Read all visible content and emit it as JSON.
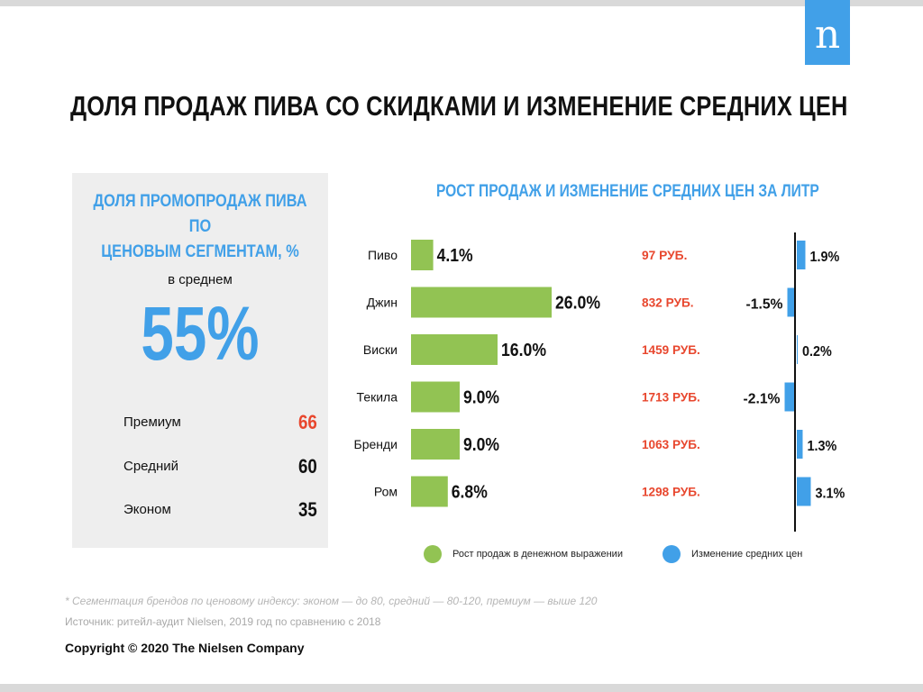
{
  "logo": {
    "text": "n"
  },
  "title": "ДОЛЯ ПРОДАЖ ПИВА СО СКИДКАМИ И ИЗМЕНЕНИЕ СРЕДНИХ ЦЕН",
  "panel": {
    "title_line1": "ДОЛЯ ПРОМОПРОДАЖ ПИВА ПО",
    "title_line2": "ЦЕНОВЫМ СЕГМЕНТАМ, %",
    "avg_label": "в среднем",
    "avg_value": "55%",
    "segments": [
      {
        "name": "Премиум",
        "value": "66"
      },
      {
        "name": "Средний",
        "value": "60"
      },
      {
        "name": "Эконом",
        "value": "35"
      }
    ]
  },
  "chart_data": {
    "type": "bar",
    "title": "РОСТ ПРОДАЖ И ИЗМЕНЕНИЕ СРЕДНИХ ЦЕН ЗА ЛИТР",
    "categories": [
      "Пиво",
      "Джин",
      "Виски",
      "Текила",
      "Бренди",
      "Ром"
    ],
    "series": [
      {
        "name": "Рост продаж в денежном выражении",
        "values": [
          4.1,
          26.0,
          16.0,
          9.0,
          9.0,
          6.8
        ],
        "labels": [
          "4.1%",
          "26.0%",
          "16.0%",
          "9.0%",
          "9.0%",
          "6.8%"
        ],
        "color": "#92c353"
      },
      {
        "name": "Изменение средних цен",
        "values": [
          1.9,
          -1.5,
          0.2,
          -2.1,
          1.3,
          3.1
        ],
        "labels": [
          "1.9%",
          "-1.5%",
          "0.2%",
          "-2.1%",
          "1.3%",
          "3.1%"
        ],
        "color": "#41a0e8"
      }
    ],
    "prices": [
      "97 РУБ.",
      "832 РУБ.",
      "1459 РУБ.",
      "1713 РУБ.",
      "1063 РУБ.",
      "1298 РУБ."
    ],
    "price_color": "#e8472e"
  },
  "footnote": "* Сегментация брендов по ценовому индексу: эконом — до 80, средний — 80-120, премиум — выше 120",
  "source": "Источник: ритейл-аудит Nielsen, 2019 год по сравнению с 2018",
  "copyright": "Copyright © 2020 The Nielsen Company"
}
